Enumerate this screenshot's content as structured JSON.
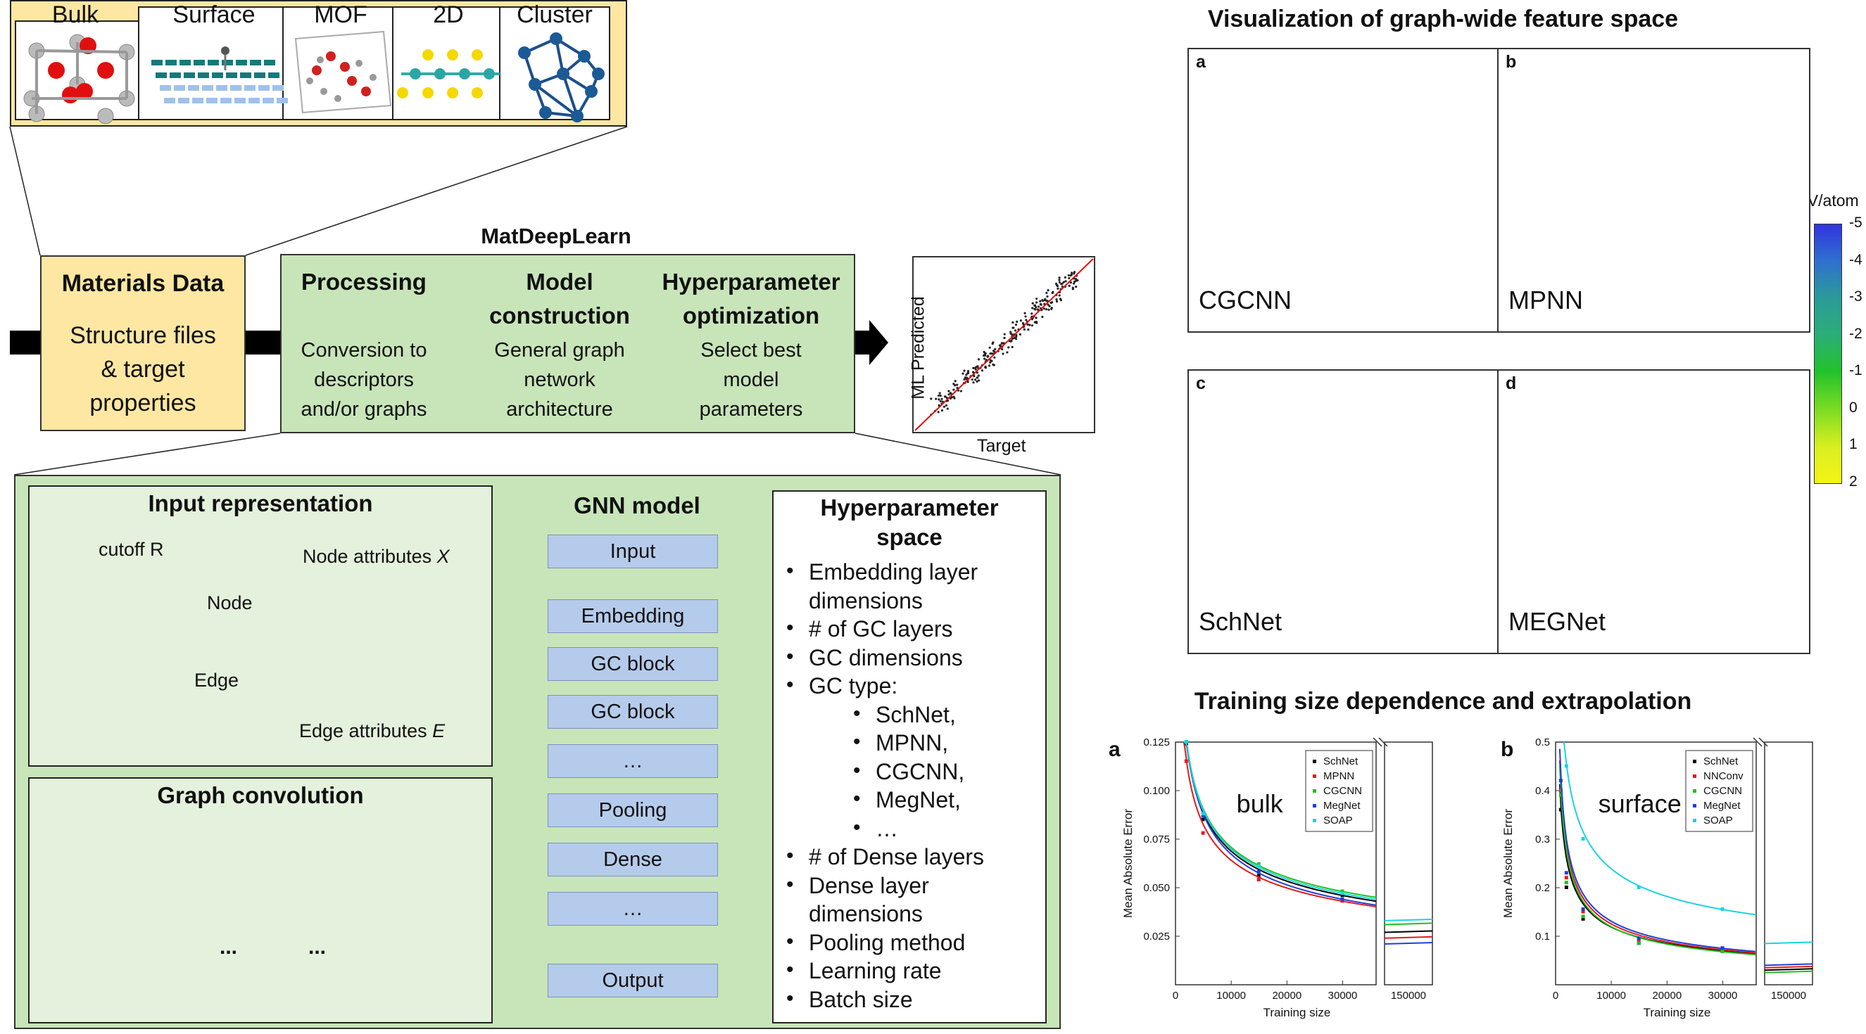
{
  "top_panel": {
    "structures": [
      {
        "label": "Bulk",
        "icon": "bulk-structure-icon"
      },
      {
        "label": "Surface",
        "icon": "surface-structure-icon"
      },
      {
        "label": "MOF",
        "icon": "mof-structure-icon"
      },
      {
        "label": "2D",
        "icon": "2d-structure-icon"
      },
      {
        "label": "Cluster",
        "icon": "cluster-structure-icon"
      }
    ]
  },
  "pipeline": {
    "title": "MatDeepLearn",
    "materials_data": {
      "title": "Materials Data",
      "line1": "Structure files",
      "line2": "& target",
      "line3": "properties"
    },
    "steps": [
      {
        "title1": "Processing",
        "title2": "",
        "desc1": "Conversion to",
        "desc2": "descriptors",
        "desc3": "and/or graphs"
      },
      {
        "title1": "Model",
        "title2": "construction",
        "desc1": "General graph",
        "desc2": "network",
        "desc3": "architecture"
      },
      {
        "title1": "Hyperparameter",
        "title2": "optimization",
        "desc1": "Select best",
        "desc2": "model",
        "desc3": "parameters"
      }
    ],
    "parity_plot": {
      "xlabel": "Target",
      "ylabel": "ML Predicted"
    }
  },
  "detail": {
    "input_representation": {
      "title": "Input representation",
      "cutoff": "cutoff R",
      "node": "Node",
      "edge": "Edge",
      "node_attr": "Node attributes",
      "node_attr_var": "X",
      "edge_attr": "Edge attributes",
      "edge_attr_var": "E"
    },
    "graph_convolution": {
      "title": "Graph convolution",
      "ellipsis": "..."
    },
    "gnn_model": {
      "title": "GNN model",
      "layers": [
        "Input",
        "Embedding",
        "GC block",
        "GC block",
        "…",
        "Pooling",
        "Dense",
        "…",
        "Output"
      ]
    },
    "hyperparameter_space": {
      "title1": "Hyperparameter",
      "title2": "space",
      "items": [
        {
          "text": "Embedding layer",
          "level": 0,
          "bullet": true
        },
        {
          "text": "dimensions",
          "level": 0,
          "bullet": false
        },
        {
          "text": "# of GC layers",
          "level": 0,
          "bullet": true
        },
        {
          "text": "GC dimensions",
          "level": 0,
          "bullet": true
        },
        {
          "text": "GC type:",
          "level": 0,
          "bullet": true
        },
        {
          "text": "SchNet,",
          "level": 1,
          "bullet": true
        },
        {
          "text": "MPNN,",
          "level": 1,
          "bullet": true
        },
        {
          "text": "CGCNN,",
          "level": 1,
          "bullet": true
        },
        {
          "text": "MegNet,",
          "level": 1,
          "bullet": true
        },
        {
          "text": "…",
          "level": 1,
          "bullet": true
        },
        {
          "text": "# of Dense layers",
          "level": 0,
          "bullet": true
        },
        {
          "text": "Dense layer",
          "level": 0,
          "bullet": true
        },
        {
          "text": "dimensions",
          "level": 0,
          "bullet": false
        },
        {
          "text": "Pooling method",
          "level": 0,
          "bullet": true
        },
        {
          "text": "Learning rate",
          "level": 0,
          "bullet": true
        },
        {
          "text": "Batch size",
          "level": 0,
          "bullet": true
        }
      ]
    }
  },
  "feature_space": {
    "title": "Visualization of graph-wide feature space",
    "panels": [
      {
        "letter": "a",
        "model": "CGCNN"
      },
      {
        "letter": "b",
        "model": "MPNN"
      },
      {
        "letter": "c",
        "model": "SchNet"
      },
      {
        "letter": "d",
        "model": "MEGNet"
      }
    ],
    "colorbar": {
      "unit": "eV/atom",
      "ticks": [
        "-5",
        "-4",
        "-3",
        "-2",
        "-1",
        "0",
        "1",
        "2"
      ]
    }
  },
  "training": {
    "title": "Training size dependence and extrapolation",
    "colors": {
      "SchNet": "#000000",
      "MPNN": "#e41a1c",
      "NNConv": "#e41a1c",
      "CGCNN": "#22c022",
      "MegNet": "#1f3fd8",
      "SOAP": "#1ad4e0"
    },
    "chart_data": [
      {
        "type": "line",
        "letter": "a",
        "label": "bulk",
        "xlabel": "Training size",
        "ylabel": "Mean Absolute Error",
        "xlim": [
          0,
          36000
        ],
        "ylim": [
          0,
          0.125
        ],
        "yticks": [
          "0.025",
          "0.050",
          "0.075",
          "0.100",
          "0.125"
        ],
        "xticks": [
          "0",
          "10000",
          "20000",
          "30000"
        ],
        "extrap_tick": "150000",
        "series": [
          {
            "name": "SchNet",
            "points": [
              [
                2000,
                0.124
              ],
              [
                5000,
                0.085
              ],
              [
                15000,
                0.056
              ],
              [
                30000,
                0.046
              ]
            ],
            "extrap": 0.027
          },
          {
            "name": "MPNN",
            "points": [
              [
                2000,
                0.115
              ],
              [
                5000,
                0.078
              ],
              [
                15000,
                0.054
              ],
              [
                30000,
                0.043
              ]
            ],
            "extrap": 0.024
          },
          {
            "name": "CGCNN",
            "points": [
              [
                2000,
                0.125
              ],
              [
                5000,
                0.088
              ],
              [
                15000,
                0.062
              ],
              [
                30000,
                0.048
              ]
            ],
            "extrap": 0.031
          },
          {
            "name": "MegNet",
            "points": [
              [
                2000,
                0.125
              ],
              [
                5000,
                0.087
              ],
              [
                15000,
                0.058
              ],
              [
                30000,
                0.044
              ]
            ],
            "extrap": 0.021
          },
          {
            "name": "SOAP",
            "points": [
              [
                2000,
                0.125
              ],
              [
                5000,
                0.088
              ],
              [
                15000,
                0.061
              ],
              [
                30000,
                0.047
              ]
            ],
            "extrap": 0.033
          }
        ]
      },
      {
        "type": "line",
        "letter": "b",
        "label": "surface",
        "xlabel": "Training size",
        "ylabel": "Mean Absolute Error",
        "xlim": [
          0,
          36000
        ],
        "ylim": [
          0,
          0.5
        ],
        "yticks": [
          "0.1",
          "0.2",
          "0.3",
          "0.4",
          "0.5"
        ],
        "xticks": [
          "0",
          "10000",
          "20000",
          "30000"
        ],
        "extrap_tick": "150000",
        "series": [
          {
            "name": "SchNet",
            "points": [
              [
                1000,
                0.36
              ],
              [
                2000,
                0.2
              ],
              [
                5000,
                0.135
              ],
              [
                15000,
                0.085
              ],
              [
                30000,
                0.07
              ]
            ],
            "extrap": 0.03
          },
          {
            "name": "NNConv",
            "points": [
              [
                1000,
                0.4
              ],
              [
                2000,
                0.22
              ],
              [
                5000,
                0.15
              ],
              [
                15000,
                0.09
              ],
              [
                30000,
                0.072
              ]
            ],
            "extrap": 0.035
          },
          {
            "name": "CGCNN",
            "points": [
              [
                1000,
                0.39
              ],
              [
                2000,
                0.21
              ],
              [
                5000,
                0.14
              ],
              [
                15000,
                0.085
              ],
              [
                30000,
                0.068
              ]
            ],
            "extrap": 0.025
          },
          {
            "name": "MegNet",
            "points": [
              [
                1000,
                0.42
              ],
              [
                2000,
                0.23
              ],
              [
                5000,
                0.155
              ],
              [
                15000,
                0.095
              ],
              [
                30000,
                0.075
              ]
            ],
            "extrap": 0.04
          },
          {
            "name": "SOAP",
            "points": [
              [
                2000,
                0.45
              ],
              [
                5000,
                0.3
              ],
              [
                15000,
                0.2
              ],
              [
                30000,
                0.155
              ]
            ],
            "extrap": 0.085
          }
        ]
      }
    ]
  }
}
